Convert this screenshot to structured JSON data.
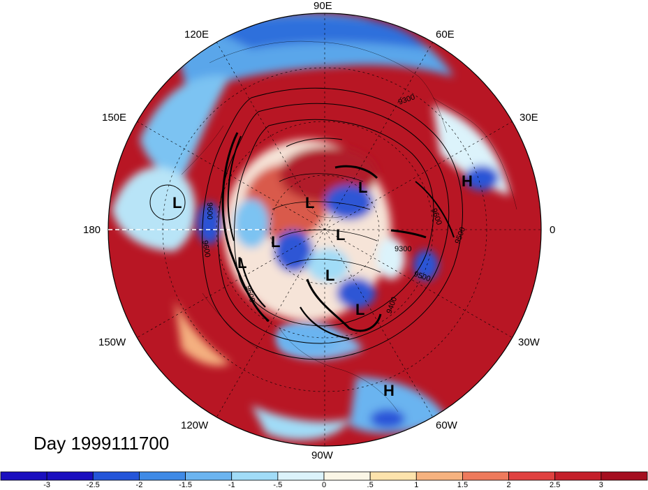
{
  "title": "Day 1999111700",
  "longitude_labels": {
    "top": "90E",
    "top_left": "120E",
    "top_right": "60E",
    "upper_left": "150E",
    "upper_right": "30E",
    "left": "180",
    "right": "0",
    "lower_left": "150W",
    "lower_right": "30W",
    "bottom_left": "120W",
    "bottom_right": "60W",
    "bottom": "90W"
  },
  "pressure_centers": [
    {
      "label": "L"
    },
    {
      "label": "L"
    },
    {
      "label": "L"
    },
    {
      "label": "L"
    },
    {
      "label": "L"
    },
    {
      "label": "L"
    },
    {
      "label": "L"
    },
    {
      "label": "L"
    },
    {
      "label": "H"
    },
    {
      "label": "H"
    }
  ],
  "contour_labels": [
    "9600",
    "9600",
    "9300",
    "9500",
    "9400",
    "9300",
    "9500",
    "9600",
    "9600"
  ],
  "colorbar": {
    "ticks": [
      "-3",
      "-2.5",
      "-2",
      "-1.5",
      "-1",
      "-.5",
      "0",
      ".5",
      "1",
      "1.5",
      "2",
      "2.5",
      "3"
    ],
    "colors": [
      "#1a0fbf",
      "#2455d9",
      "#3f8ae6",
      "#6bb4f0",
      "#a1dcf7",
      "#dcf3fb",
      "#fbf6e6",
      "#fde3ac",
      "#f6b27f",
      "#ee7a5c",
      "#e04140",
      "#c41f2a",
      "#a50e1f"
    ]
  }
}
